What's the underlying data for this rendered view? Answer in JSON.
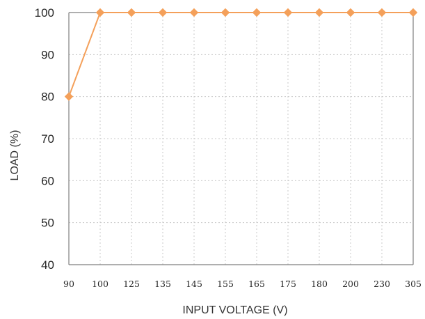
{
  "chart_data": {
    "type": "line",
    "title": "",
    "xlabel": "INPUT VOLTAGE (V)",
    "ylabel": "LOAD (%)",
    "categories": [
      "90",
      "100",
      "125",
      "135",
      "145",
      "155",
      "165",
      "175",
      "180",
      "200",
      "230",
      "305"
    ],
    "series": [
      {
        "values": [
          80,
          100,
          100,
          100,
          100,
          100,
          100,
          100,
          100,
          100,
          100,
          100
        ],
        "color": "#F4A05A"
      }
    ],
    "ylim": [
      40,
      100
    ],
    "yticks": [
      "40",
      "50",
      "60",
      "70",
      "80",
      "90",
      "100"
    ],
    "grid": true,
    "legend": "none"
  }
}
